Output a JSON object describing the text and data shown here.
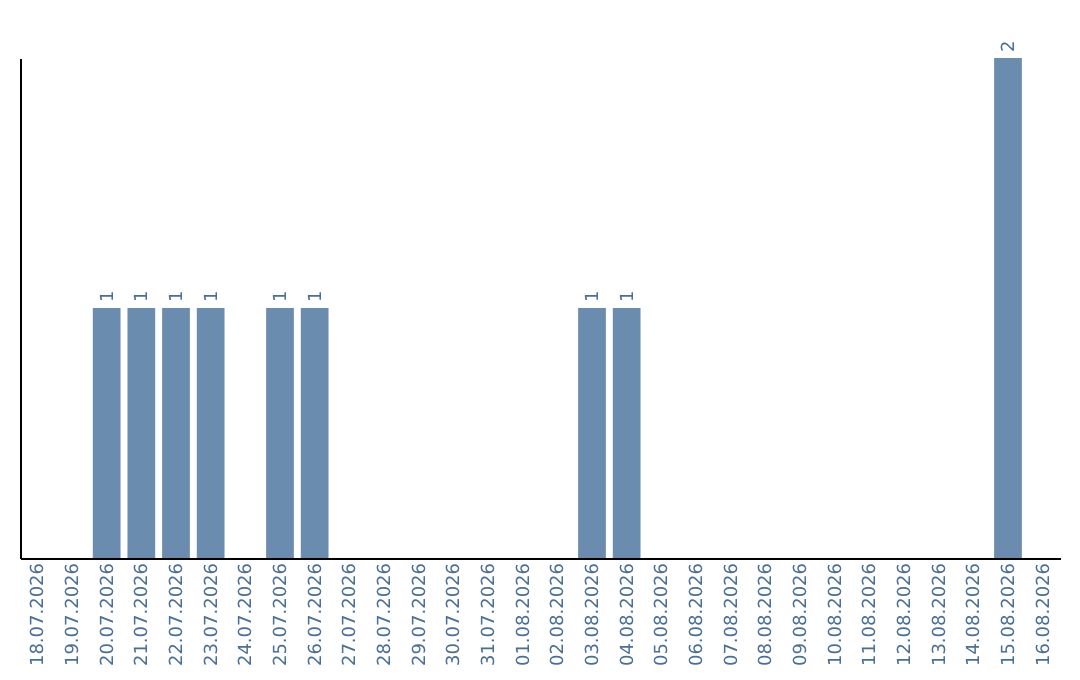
{
  "chart_data": {
    "type": "bar",
    "categories": [
      "18.07.2026",
      "19.07.2026",
      "20.07.2026",
      "21.07.2026",
      "22.07.2026",
      "23.07.2026",
      "24.07.2026",
      "25.07.2026",
      "26.07.2026",
      "27.07.2026",
      "28.07.2026",
      "29.07.2026",
      "30.07.2026",
      "31.07.2026",
      "01.08.2026",
      "02.08.2026",
      "03.08.2026",
      "04.08.2026",
      "05.08.2026",
      "06.08.2026",
      "07.08.2026",
      "08.08.2026",
      "09.08.2026",
      "10.08.2026",
      "11.08.2026",
      "12.08.2026",
      "13.08.2026",
      "14.08.2026",
      "15.08.2026",
      "16.08.2026"
    ],
    "values": [
      0,
      0,
      1,
      1,
      1,
      1,
      0,
      1,
      1,
      0,
      0,
      0,
      0,
      0,
      0,
      0,
      1,
      1,
      0,
      0,
      0,
      0,
      0,
      0,
      0,
      0,
      0,
      0,
      2,
      0
    ],
    "value_labels": [
      null,
      null,
      "1",
      "1",
      "1",
      "1",
      null,
      "1",
      "1",
      null,
      null,
      null,
      null,
      null,
      null,
      null,
      "1",
      "1",
      null,
      null,
      null,
      null,
      null,
      null,
      null,
      null,
      null,
      null,
      "2",
      null
    ],
    "color": "#6a8caf",
    "tick_labels": "x",
    "grid": false
  }
}
